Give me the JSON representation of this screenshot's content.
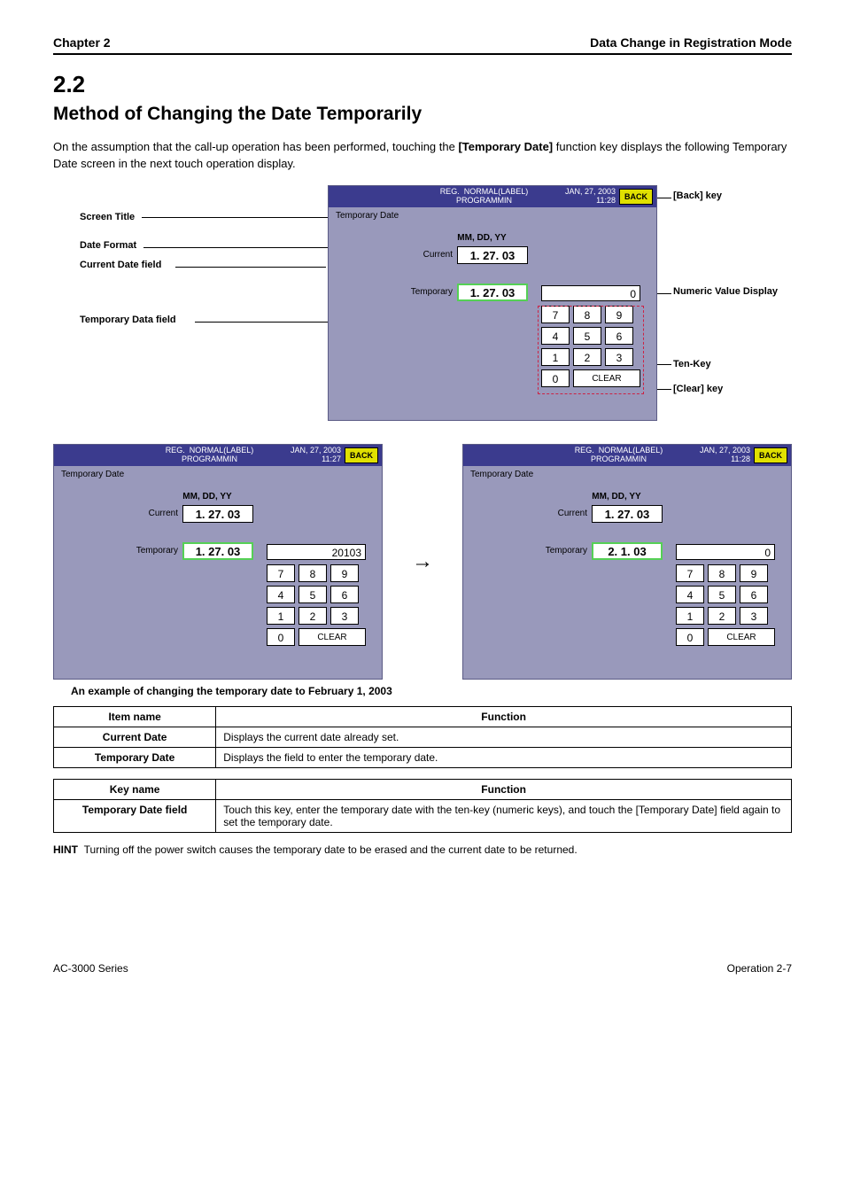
{
  "doc": {
    "header_left": "Chapter 2",
    "header_right": "Data Change in Registration Mode",
    "section_num": "2.2",
    "section_title": "Method of Changing the Date Temporarily",
    "intro_html": "On the assumption that the call-up operation has been performed, touching the <b>[Temporary Date]</b> function key displays the following Temporary Date screen in the next touch operation display.",
    "example_note": "An example of changing the temporary date to February 1, 2003",
    "hint_para_label": "HINT",
    "hint_para": "Turning off the power switch causes the temporary date to be erased and the current date to be returned.",
    "footer_left": "AC-3000 Series",
    "footer_right": "Operation 2-7"
  },
  "callouts": {
    "title": "Screen Title",
    "back": "[Back] key",
    "format": "Date Format",
    "current": "Current Date field",
    "temp": "Temporary Data field",
    "disp": "Numeric Value Display",
    "keys": "Ten-Key",
    "clear": "[Clear] key"
  },
  "bluebar": {
    "mid1": "REG.",
    "mid2": "NORMAL(LABEL)",
    "mid3": "PROGRAMMIN",
    "date_main": "JAN, 27, 2003",
    "time_main": "11:28",
    "time_left": "11:27",
    "back": "BACK"
  },
  "panel": {
    "title": "Temporary Date",
    "format": "MM, DD, YY",
    "current_label": "Current",
    "temp_label": "Temporary",
    "current_value": "1. 27. 03",
    "temp_value_main": "1. 27. 03",
    "temp_value_left": "1. 27. 03",
    "temp_value_right": "2.  1. 03"
  },
  "keypad": {
    "display_zero": "0",
    "display_left": "20103",
    "k7": "7",
    "k8": "8",
    "k9": "9",
    "k4": "4",
    "k5": "5",
    "k6": "6",
    "k1": "1",
    "k2": "2",
    "k3": "3",
    "k0": "0",
    "clear": "CLEAR"
  },
  "table1": {
    "h_item": "Item name",
    "h_func": "Function",
    "r1_item": "Current Date",
    "r1_func": "Displays the current date already set.",
    "r2_item": "Temporary Date",
    "r2_func": "Displays the field to enter the temporary date."
  },
  "table2": {
    "h_key": "Key name",
    "h_func": "Function",
    "r1_key": "Temporary Date field",
    "r1_func": "Touch this key, enter the temporary date with the ten-key (numeric keys), and touch the [Temporary Date] field again to set the temporary date."
  }
}
